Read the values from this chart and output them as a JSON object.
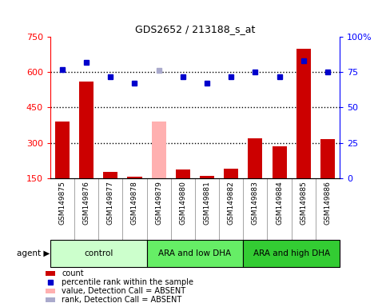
{
  "title": "GDS2652 / 213188_s_at",
  "samples": [
    "GSM149875",
    "GSM149876",
    "GSM149877",
    "GSM149878",
    "GSM149879",
    "GSM149880",
    "GSM149881",
    "GSM149882",
    "GSM149883",
    "GSM149884",
    "GSM149885",
    "GSM149886"
  ],
  "bar_values": [
    390,
    560,
    175,
    155,
    390,
    185,
    160,
    190,
    320,
    285,
    700,
    315
  ],
  "bar_colors": [
    "#cc0000",
    "#cc0000",
    "#cc0000",
    "#cc0000",
    "#ffb0b0",
    "#cc0000",
    "#cc0000",
    "#cc0000",
    "#cc0000",
    "#cc0000",
    "#cc0000",
    "#cc0000"
  ],
  "dot_values": [
    77,
    82,
    72,
    67,
    76,
    72,
    67,
    72,
    75,
    72,
    83,
    75
  ],
  "dot_colors": [
    "#0000cc",
    "#0000cc",
    "#0000cc",
    "#0000cc",
    "#aaaacc",
    "#0000cc",
    "#0000cc",
    "#0000cc",
    "#0000cc",
    "#0000cc",
    "#0000cc",
    "#0000cc"
  ],
  "groups": [
    {
      "label": "control",
      "start": 0,
      "end": 3,
      "color": "#ccffcc"
    },
    {
      "label": "ARA and low DHA",
      "start": 4,
      "end": 7,
      "color": "#66ee66"
    },
    {
      "label": "ARA and high DHA",
      "start": 8,
      "end": 11,
      "color": "#33cc33"
    }
  ],
  "ylim_left": [
    150,
    750
  ],
  "ylim_right": [
    0,
    100
  ],
  "yticks_left": [
    150,
    300,
    450,
    600,
    750
  ],
  "yticks_right": [
    0,
    25,
    50,
    75,
    100
  ],
  "hlines": [
    300,
    450,
    600
  ],
  "bar_baseline": 150,
  "xlabel_bg": "#d0d0d0",
  "legend_items": [
    {
      "color": "#cc0000",
      "label": "count",
      "type": "patch"
    },
    {
      "color": "#0000cc",
      "label": "percentile rank within the sample",
      "type": "square"
    },
    {
      "color": "#ffb0b0",
      "label": "value, Detection Call = ABSENT",
      "type": "patch"
    },
    {
      "color": "#aaaacc",
      "label": "rank, Detection Call = ABSENT",
      "type": "patch"
    }
  ]
}
